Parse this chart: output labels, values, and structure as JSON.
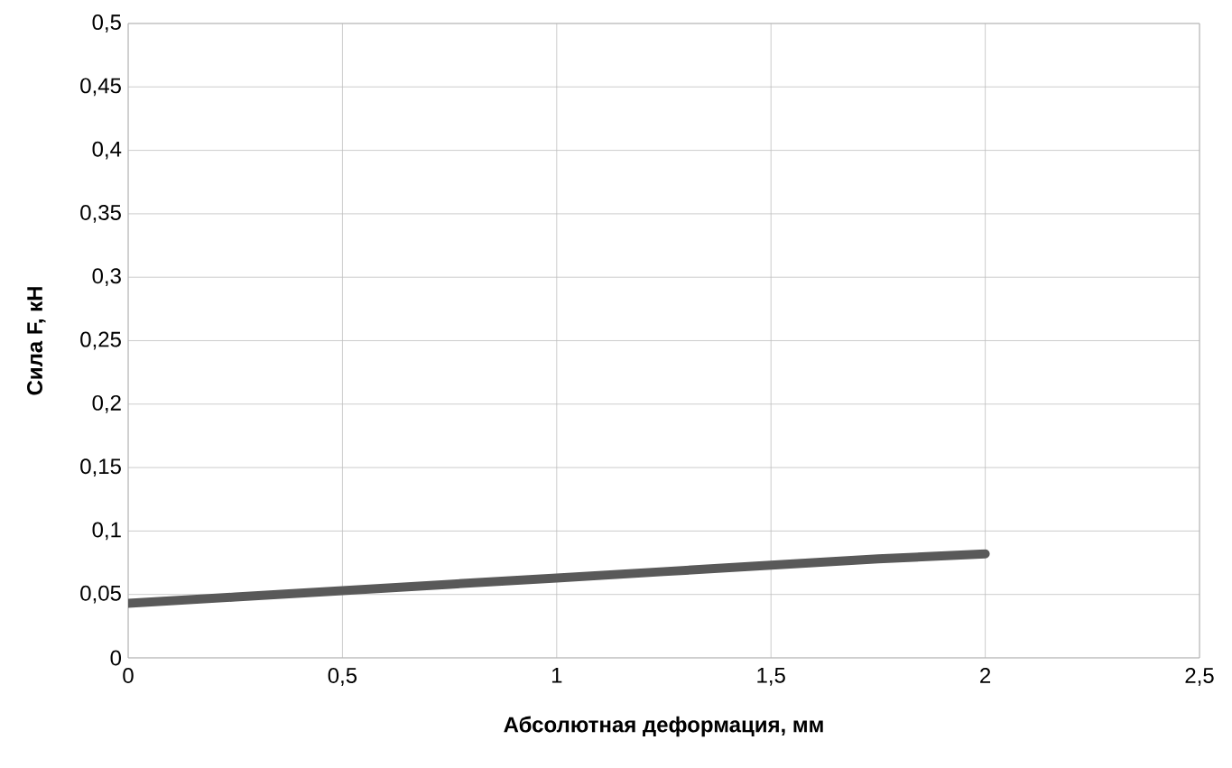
{
  "chart_data": {
    "type": "line",
    "xlabel": "Абсолютная деформация, мм",
    "ylabel": "Сила F, кН",
    "x": [
      0,
      0.25,
      0.5,
      0.75,
      1,
      1.25,
      1.5,
      1.75,
      2
    ],
    "series": [
      {
        "color": "#595959",
        "values": [
          0.043,
          0.048,
          0.053,
          0.058,
          0.063,
          0.068,
          0.073,
          0.078,
          0.082
        ]
      }
    ],
    "xlim": [
      0,
      2.5
    ],
    "xticks": [
      0,
      {
        "value": 0.5,
        "label": "0,5"
      },
      1,
      {
        "value": 1.5,
        "label": "1,5"
      },
      2,
      {
        "value": 2.5,
        "label": "2,5"
      }
    ],
    "ylim": [
      0,
      0.5
    ],
    "yticks": [
      0,
      {
        "value": 0.05,
        "label": "0,05"
      },
      {
        "value": 0.1,
        "label": "0,1"
      },
      {
        "value": 0.15,
        "label": "0,15"
      },
      {
        "value": 0.2,
        "label": "0,2"
      },
      {
        "value": 0.25,
        "label": "0,25"
      },
      {
        "value": 0.3,
        "label": "0,3"
      },
      {
        "value": 0.35,
        "label": "0,35"
      },
      {
        "value": 0.4,
        "label": "0,4"
      },
      {
        "value": 0.45,
        "label": "0,45"
      },
      {
        "value": 0.5,
        "label": "0,5"
      }
    ],
    "grid": true,
    "marker": "none",
    "line_style": "solid"
  }
}
